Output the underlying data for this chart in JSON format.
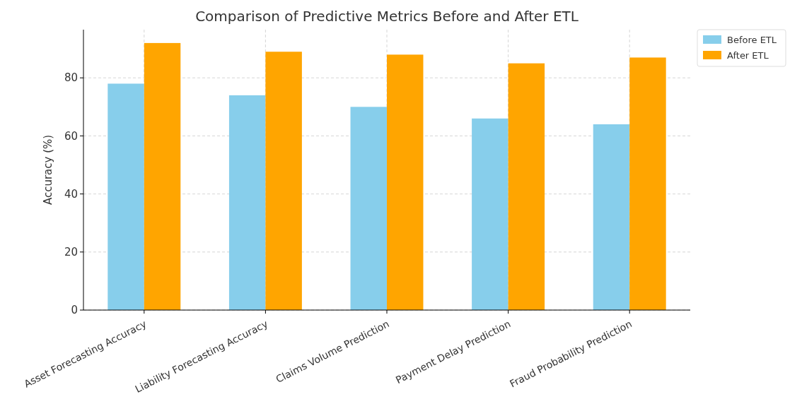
{
  "chart_data": {
    "type": "bar",
    "title": "Comparison of Predictive Metrics Before and After ETL",
    "ylabel": "Accuracy (%)",
    "categories": [
      "Asset Forecasting Accuracy",
      "Liability Forecasting Accuracy",
      "Claims Volume Prediction",
      "Payment Delay Prediction",
      "Fraud Probability Prediction"
    ],
    "series": [
      {
        "name": "Before ETL",
        "color": "#87ceeb",
        "values": [
          78,
          74,
          70,
          66,
          64
        ]
      },
      {
        "name": "After ETL",
        "color": "#ffa500",
        "values": [
          92,
          89,
          88,
          85,
          87
        ]
      }
    ],
    "ylim": [
      0,
      96.6
    ],
    "yticks": [
      0,
      20,
      40,
      60,
      80
    ],
    "grid": true,
    "legend": "top right"
  }
}
